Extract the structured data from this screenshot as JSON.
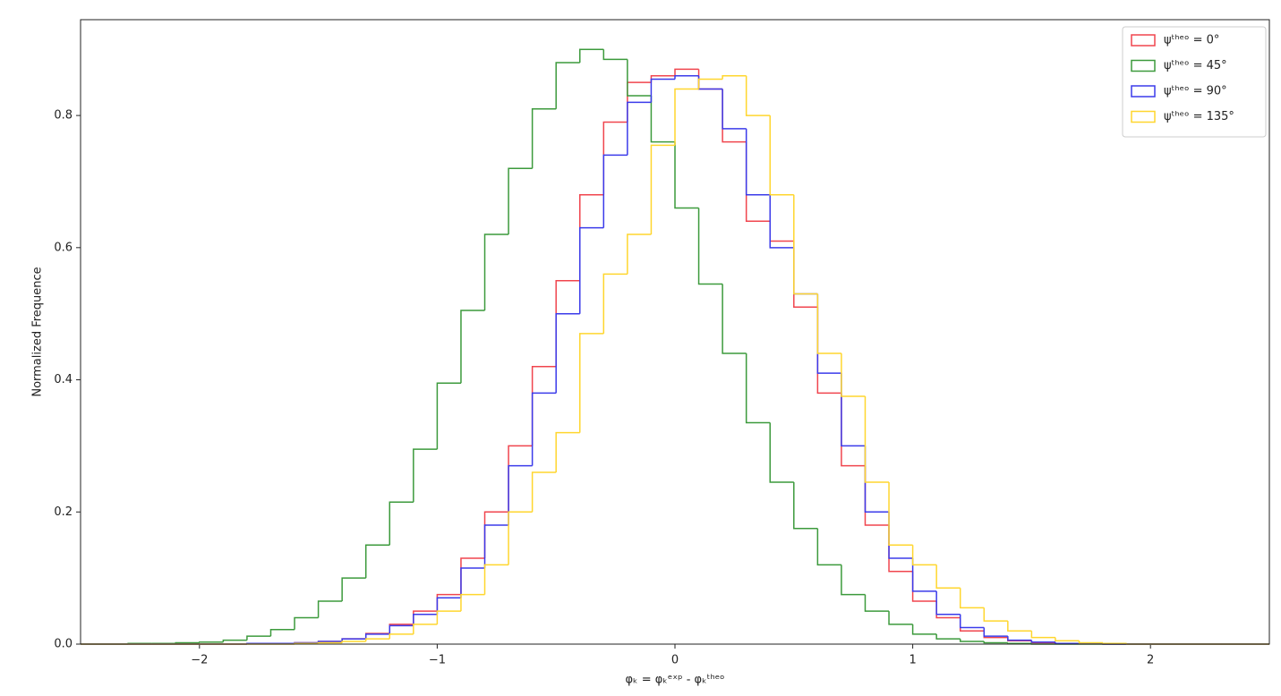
{
  "chart_data": {
    "type": "histogram",
    "histtype": "step",
    "x_label": "φₖ = φₖᵉˣᵖ - φₖᵗʰᵉᵒ",
    "y_label": "Normalized Frequence",
    "xlim": [
      -2.5,
      2.5
    ],
    "ylim": [
      0,
      0.945
    ],
    "xticks": [
      {
        "value": -2,
        "label": "−2"
      },
      {
        "value": -1,
        "label": "−1"
      },
      0,
      1,
      2
    ],
    "yticks": [
      {
        "value": 0,
        "label": "0.0"
      },
      0.2,
      0.4,
      0.6,
      0.8
    ],
    "legend_loc": "upper right",
    "bins": [
      -2.5,
      -2.4,
      -2.3,
      -2.2,
      -2.1,
      -2.0,
      -1.9,
      -1.8,
      -1.7,
      -1.6,
      -1.5,
      -1.4,
      -1.3,
      -1.2,
      -1.1,
      -1.0,
      -0.9,
      -0.8,
      -0.7,
      -0.6,
      -0.5,
      -0.4,
      -0.3,
      -0.2,
      -0.1,
      0.0,
      0.1,
      0.2,
      0.3,
      0.4,
      0.5,
      0.6,
      0.7,
      0.8,
      0.9,
      1.0,
      1.1,
      1.2,
      1.3,
      1.4,
      1.5,
      1.6,
      1.7,
      1.8,
      1.9,
      2.0,
      2.1,
      2.2,
      2.3,
      2.4,
      2.5
    ],
    "series": [
      {
        "name": "ψᵗʰᵉᵒ = 0°",
        "color": "#f0454e",
        "values": [
          0,
          0,
          0,
          0,
          0,
          0,
          0,
          0.001,
          0.001,
          0.002,
          0.004,
          0.008,
          0.016,
          0.03,
          0.05,
          0.075,
          0.13,
          0.2,
          0.3,
          0.42,
          0.55,
          0.68,
          0.79,
          0.85,
          0.86,
          0.87,
          0.84,
          0.76,
          0.64,
          0.61,
          0.51,
          0.38,
          0.27,
          0.18,
          0.11,
          0.065,
          0.04,
          0.02,
          0.01,
          0.005,
          0.002,
          0.001,
          0.001,
          0,
          0,
          0,
          0,
          0,
          0,
          0
        ]
      },
      {
        "name": "ψᵗʰᵉᵒ = 45°",
        "color": "#3c9a3c",
        "values": [
          0,
          0,
          0.001,
          0.001,
          0.002,
          0.003,
          0.006,
          0.012,
          0.022,
          0.04,
          0.065,
          0.1,
          0.15,
          0.215,
          0.295,
          0.395,
          0.505,
          0.62,
          0.72,
          0.81,
          0.88,
          0.9,
          0.885,
          0.83,
          0.76,
          0.66,
          0.545,
          0.44,
          0.335,
          0.245,
          0.175,
          0.12,
          0.075,
          0.05,
          0.03,
          0.015,
          0.008,
          0.004,
          0.002,
          0.001,
          0,
          0,
          0,
          0,
          0,
          0,
          0,
          0,
          0,
          0
        ]
      },
      {
        "name": "ψᵗʰᵉᵒ = 90°",
        "color": "#3b3bea",
        "values": [
          0,
          0,
          0,
          0,
          0,
          0,
          0,
          0.001,
          0.001,
          0.002,
          0.004,
          0.008,
          0.015,
          0.028,
          0.045,
          0.07,
          0.115,
          0.18,
          0.27,
          0.38,
          0.5,
          0.63,
          0.74,
          0.82,
          0.855,
          0.86,
          0.84,
          0.78,
          0.68,
          0.6,
          0.53,
          0.41,
          0.3,
          0.2,
          0.13,
          0.08,
          0.045,
          0.025,
          0.012,
          0.006,
          0.003,
          0.001,
          0.001,
          0,
          0,
          0,
          0,
          0,
          0,
          0
        ]
      },
      {
        "name": "ψᵗʰᵉᵒ = 135°",
        "color": "#ffd62e",
        "values": [
          0,
          0,
          0,
          0,
          0,
          0,
          0,
          0,
          0,
          0.001,
          0.002,
          0.004,
          0.008,
          0.015,
          0.03,
          0.05,
          0.075,
          0.12,
          0.2,
          0.26,
          0.32,
          0.47,
          0.56,
          0.62,
          0.755,
          0.84,
          0.855,
          0.86,
          0.8,
          0.68,
          0.53,
          0.44,
          0.375,
          0.245,
          0.15,
          0.12,
          0.085,
          0.055,
          0.035,
          0.02,
          0.01,
          0.005,
          0.002,
          0.001,
          0,
          0,
          0,
          0,
          0,
          0
        ]
      }
    ]
  }
}
